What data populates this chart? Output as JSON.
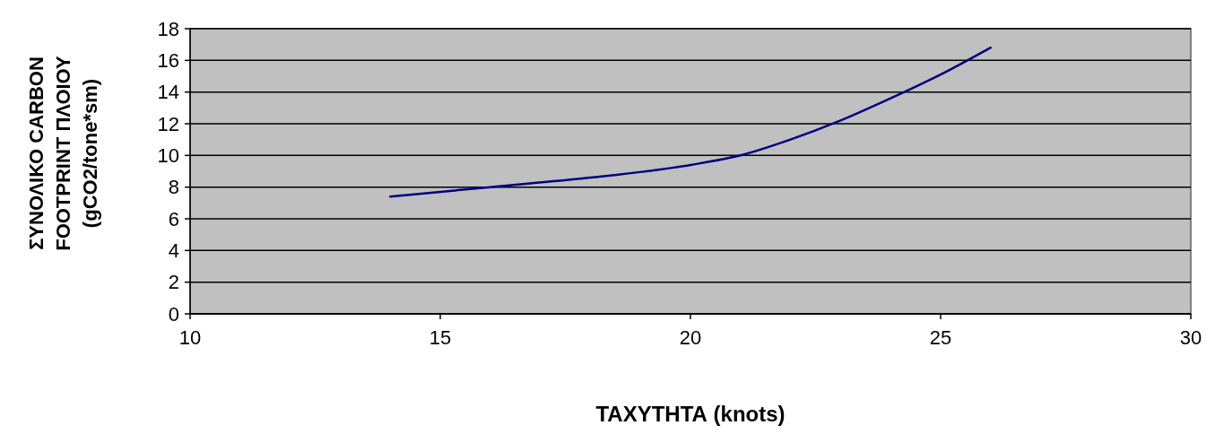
{
  "chart_data": {
    "type": "line",
    "xlabel": "ΤΑΧΥΤΗΤΑ (knots)",
    "ylabel": "ΣΥΝΟΛΙΚΟ CARBON FOOTPRINT ΠΛΟΙΟΥ (gCO2/tone*sm)",
    "x": [
      14,
      16,
      18,
      20,
      21,
      22,
      23,
      24,
      25,
      26
    ],
    "series": [
      {
        "color": "#000080",
        "values": [
          7.4,
          8.0,
          8.6,
          9.4,
          10.0,
          11.0,
          12.2,
          13.6,
          15.1,
          16.8
        ]
      }
    ],
    "xlim": [
      10,
      30
    ],
    "xticks": [
      10,
      15,
      20,
      25,
      30
    ],
    "ylim": [
      0,
      18
    ],
    "yticks": [
      0,
      2,
      4,
      6,
      8,
      10,
      12,
      14,
      16,
      18
    ],
    "grid": "y",
    "marker": "none",
    "line_style": "solid"
  }
}
